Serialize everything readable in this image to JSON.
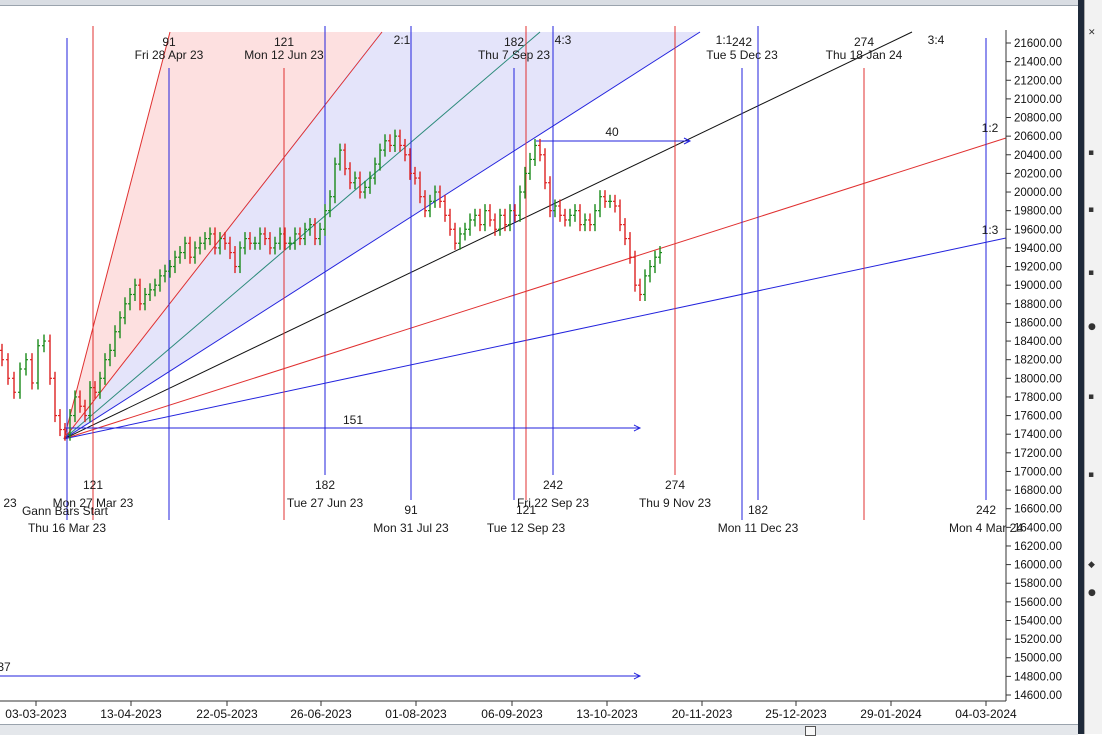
{
  "chart_data": {
    "type": "ohlc-bar",
    "y_axis": {
      "min": 14600,
      "max": 21600,
      "ticks": [
        "21600.00",
        "21400.00",
        "21200.00",
        "21000.00",
        "20800.00",
        "20600.00",
        "20400.00",
        "20200.00",
        "20000.00",
        "19800.00",
        "19600.00",
        "19400.00",
        "19200.00",
        "19000.00",
        "18800.00",
        "18600.00",
        "18400.00",
        "18200.00",
        "18000.00",
        "17800.00",
        "17600.00",
        "17400.00",
        "17200.00",
        "17000.00",
        "16800.00",
        "16600.00",
        "16400.00",
        "16200.00",
        "16000.00",
        "15800.00",
        "15600.00",
        "15400.00",
        "15200.00",
        "15000.00",
        "14800.00",
        "14600.00"
      ]
    },
    "x_axis": {
      "ticks": [
        "03-03-2023",
        "13-04-2023",
        "22-05-2023",
        "26-06-2023",
        "01-08-2023",
        "06-09-2023",
        "13-10-2023",
        "20-11-2023",
        "25-12-2023",
        "29-01-2024",
        "04-03-2024"
      ]
    },
    "gann_fan": {
      "origin": "Thu 16 Mar 23",
      "labels": [
        "2:1",
        "4:3",
        "1:1",
        "3:4",
        "1:2",
        "1:3"
      ]
    },
    "time_cycles": [
      {
        "count": "91",
        "date": "Fri 28 Apr 23"
      },
      {
        "count": "121",
        "date": "Mon 12 Jun 23"
      },
      {
        "count": "182",
        "date": "Thu 7 Sep 23"
      },
      {
        "count": "242",
        "date": "Tue 5 Dec 23"
      },
      {
        "count": "274",
        "date": "Thu 18 Jan 24"
      },
      {
        "count": "121",
        "date": "Mon 27 Mar 23"
      },
      {
        "count": "182",
        "date": "Tue 27 Jun 23"
      },
      {
        "count": "91",
        "date": "Mon 31 Jul 23"
      },
      {
        "count": "121",
        "date": "Tue 12 Sep 23"
      },
      {
        "count": "242",
        "date": "Fri 22 Sep 23"
      },
      {
        "count": "274",
        "date": "Thu 9 Nov 23"
      },
      {
        "count": "182",
        "date": "Mon 11 Dec 23"
      },
      {
        "count": "242",
        "date": "Mon 4 Mar 24"
      }
    ],
    "annotations": [
      "Gann Bars Start",
      "Thu 16 Mar 23",
      "23",
      "40",
      "151",
      "37"
    ],
    "price_path": [
      [
        -9,
        18550
      ],
      [
        -4,
        18300
      ],
      [
        2,
        18200
      ],
      [
        8,
        18000
      ],
      [
        14,
        17850
      ],
      [
        20,
        18100
      ],
      [
        26,
        18200
      ],
      [
        32,
        17950
      ],
      [
        38,
        18350
      ],
      [
        44,
        18400
      ],
      [
        50,
        18000
      ],
      [
        55,
        17600
      ],
      [
        60,
        17450
      ],
      [
        65,
        17400
      ],
      [
        70,
        17600
      ],
      [
        75,
        17800
      ],
      [
        80,
        17700
      ],
      [
        85,
        17600
      ],
      [
        90,
        17900
      ],
      [
        95,
        17850
      ],
      [
        100,
        18000
      ],
      [
        105,
        18200
      ],
      [
        110,
        18300
      ],
      [
        115,
        18500
      ],
      [
        120,
        18650
      ],
      [
        125,
        18800
      ],
      [
        130,
        18900
      ],
      [
        135,
        19000
      ],
      [
        140,
        18800
      ],
      [
        145,
        18900
      ],
      [
        150,
        18950
      ],
      [
        155,
        19000
      ],
      [
        160,
        19100
      ],
      [
        165,
        19150
      ],
      [
        170,
        19200
      ],
      [
        175,
        19300
      ],
      [
        180,
        19350
      ],
      [
        185,
        19450
      ],
      [
        190,
        19300
      ],
      [
        195,
        19400
      ],
      [
        200,
        19450
      ],
      [
        205,
        19500
      ],
      [
        210,
        19550
      ],
      [
        215,
        19400
      ],
      [
        220,
        19500
      ],
      [
        225,
        19450
      ],
      [
        230,
        19350
      ],
      [
        235,
        19200
      ],
      [
        240,
        19400
      ],
      [
        245,
        19500
      ],
      [
        250,
        19450
      ],
      [
        255,
        19450
      ],
      [
        260,
        19550
      ],
      [
        265,
        19500
      ],
      [
        270,
        19400
      ],
      [
        275,
        19450
      ],
      [
        280,
        19550
      ],
      [
        285,
        19450
      ],
      [
        290,
        19450
      ],
      [
        295,
        19550
      ],
      [
        300,
        19500
      ],
      [
        305,
        19600
      ],
      [
        310,
        19650
      ],
      [
        315,
        19500
      ],
      [
        320,
        19600
      ],
      [
        325,
        19800
      ],
      [
        330,
        19950
      ],
      [
        335,
        20300
      ],
      [
        340,
        20450
      ],
      [
        345,
        20250
      ],
      [
        350,
        20100
      ],
      [
        355,
        20150
      ],
      [
        360,
        20000
      ],
      [
        365,
        20050
      ],
      [
        370,
        20150
      ],
      [
        375,
        20300
      ],
      [
        380,
        20450
      ],
      [
        385,
        20550
      ],
      [
        390,
        20500
      ],
      [
        395,
        20600
      ],
      [
        400,
        20500
      ],
      [
        405,
        20400
      ],
      [
        410,
        20200
      ],
      [
        415,
        20150
      ],
      [
        420,
        19950
      ],
      [
        425,
        19800
      ],
      [
        430,
        19900
      ],
      [
        435,
        20000
      ],
      [
        440,
        19900
      ],
      [
        445,
        19750
      ],
      [
        450,
        19600
      ],
      [
        455,
        19450
      ],
      [
        460,
        19550
      ],
      [
        465,
        19600
      ],
      [
        470,
        19700
      ],
      [
        475,
        19750
      ],
      [
        480,
        19650
      ],
      [
        485,
        19800
      ],
      [
        490,
        19700
      ],
      [
        495,
        19600
      ],
      [
        500,
        19750
      ],
      [
        505,
        19650
      ],
      [
        510,
        19800
      ],
      [
        515,
        19750
      ],
      [
        520,
        20000
      ],
      [
        525,
        20200
      ],
      [
        530,
        20350
      ],
      [
        535,
        20500
      ],
      [
        540,
        20400
      ],
      [
        545,
        20100
      ],
      [
        550,
        19800
      ],
      [
        555,
        19850
      ],
      [
        560,
        19750
      ],
      [
        565,
        19700
      ],
      [
        570,
        19750
      ],
      [
        575,
        19800
      ],
      [
        580,
        19650
      ],
      [
        585,
        19700
      ],
      [
        590,
        19650
      ],
      [
        595,
        19800
      ],
      [
        600,
        19950
      ],
      [
        605,
        19900
      ],
      [
        610,
        19900
      ],
      [
        615,
        19850
      ],
      [
        620,
        19650
      ],
      [
        625,
        19500
      ],
      [
        630,
        19300
      ],
      [
        635,
        19000
      ],
      [
        640,
        18900
      ],
      [
        645,
        19100
      ],
      [
        650,
        19200
      ],
      [
        655,
        19300
      ],
      [
        660,
        19350
      ]
    ]
  }
}
